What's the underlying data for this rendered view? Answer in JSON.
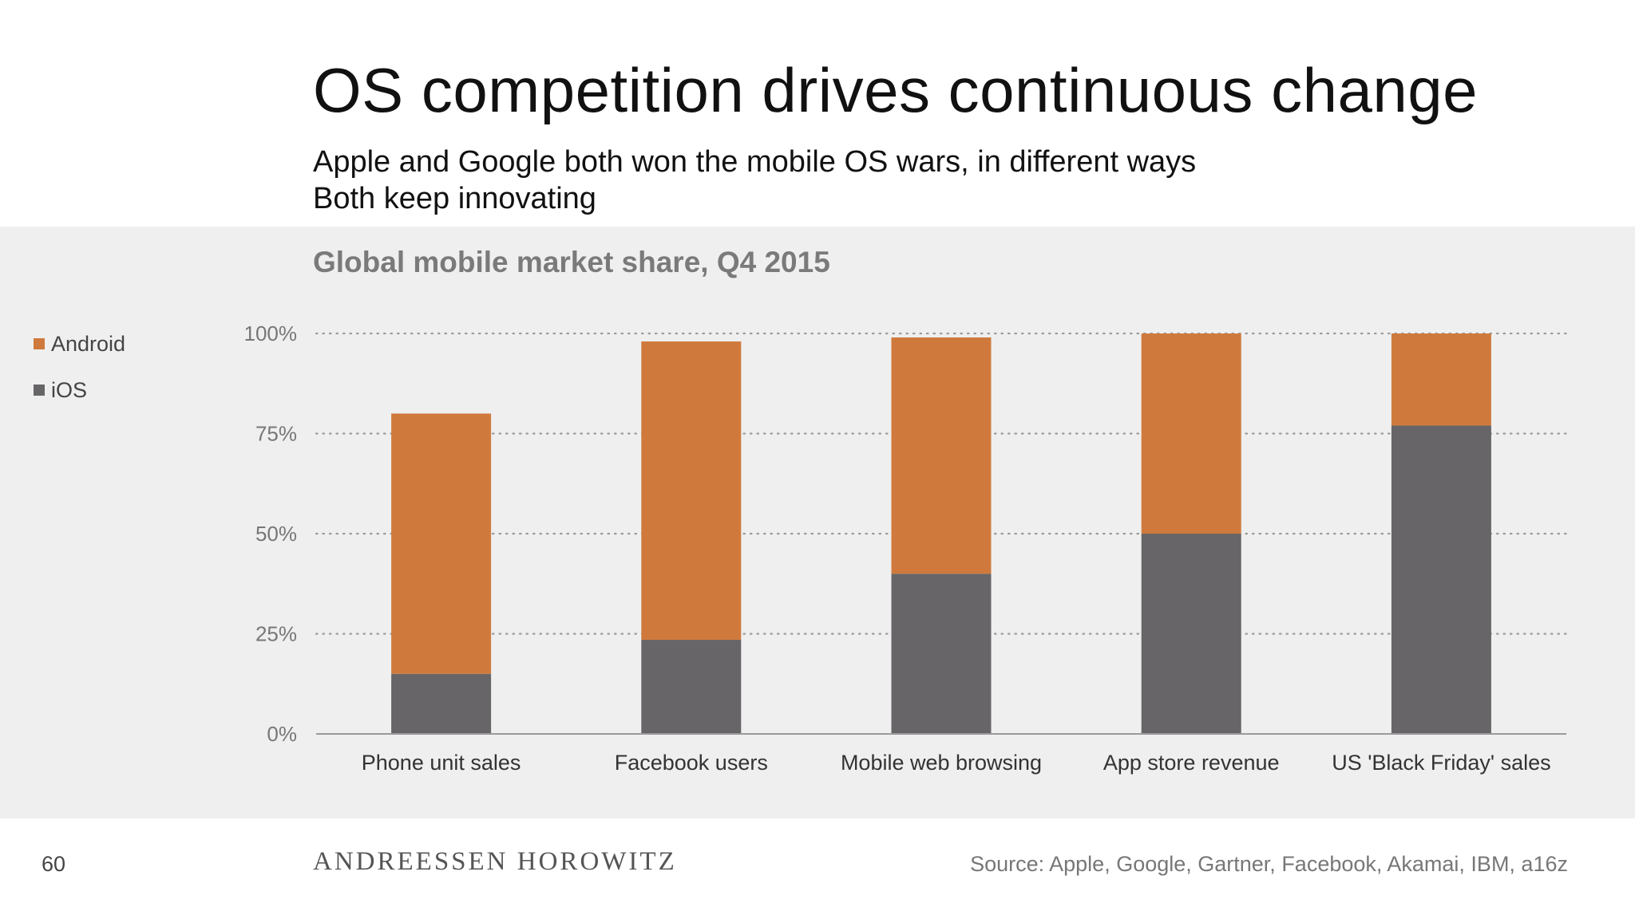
{
  "slide": {
    "title": "OS competition drives continuous change",
    "subtitle_line1": "Apple and Google both won the mobile OS wars, in different ways",
    "subtitle_line2": "Both keep innovating",
    "page_number": "60",
    "logo_text": "ANDREESSEN HOROWITZ",
    "source": "Source: Apple, Google, Gartner, Facebook, Akamai, IBM, a16z"
  },
  "colors": {
    "android": "#cf7a3c",
    "ios": "#676567",
    "panel_bg": "#efefef",
    "grid": "#9a9a9a",
    "axis_text": "#777777"
  },
  "chart_data": {
    "type": "bar",
    "stacked": true,
    "title": "Global mobile market share, Q4 2015",
    "categories": [
      "Phone unit sales",
      "Facebook users",
      "Mobile web browsing",
      "App store revenue",
      "US 'Black Friday' sales"
    ],
    "series": [
      {
        "name": "iOS",
        "values": [
          15,
          23.5,
          40,
          50,
          77
        ]
      },
      {
        "name": "Android",
        "values": [
          65,
          74.5,
          59,
          50,
          23
        ]
      }
    ],
    "legend_order": [
      "Android",
      "iOS"
    ],
    "yticks": [
      "0%",
      "25%",
      "50%",
      "75%",
      "100%"
    ],
    "ytick_values": [
      0,
      25,
      50,
      75,
      100
    ],
    "ylim": [
      0,
      100
    ],
    "grid": true,
    "legend_position": "left"
  }
}
